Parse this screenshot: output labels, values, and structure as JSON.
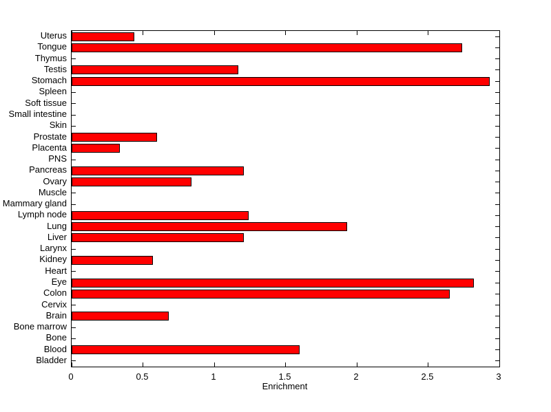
{
  "chart_data": {
    "type": "bar",
    "orientation": "horizontal",
    "title": "",
    "xlabel": "Enrichment",
    "ylabel": "",
    "xlim": [
      0,
      3
    ],
    "xticks": [
      0,
      0.5,
      1,
      1.5,
      2,
      2.5,
      3
    ],
    "xtick_labels": [
      "0",
      "0.5",
      "1",
      "1.5",
      "2",
      "2.5",
      "3"
    ],
    "grid": false,
    "legend": null,
    "bar_color": "#ff0000",
    "bar_edge_color": "#000000",
    "axis_color": "#000000",
    "background_color": "#ffffff",
    "categories_top_to_bottom": [
      "Uterus",
      "Tongue",
      "Thymus",
      "Testis",
      "Stomach",
      "Spleen",
      "Soft tissue",
      "Small intestine",
      "Skin",
      "Prostate",
      "Placenta",
      "PNS",
      "Pancreas",
      "Ovary",
      "Muscle",
      "Mammary gland",
      "Lymph node",
      "Lung",
      "Liver",
      "Larynx",
      "Kidney",
      "Heart",
      "Eye",
      "Colon",
      "Cervix",
      "Brain",
      "Bone marrow",
      "Bone",
      "Blood",
      "Bladder"
    ],
    "values": [
      0.44,
      2.74,
      0,
      1.17,
      2.93,
      0,
      0,
      0,
      0,
      0.6,
      0.34,
      0,
      1.21,
      0.84,
      0,
      0,
      1.24,
      1.93,
      1.21,
      0,
      0.57,
      0,
      2.82,
      2.65,
      0,
      0.68,
      0,
      0,
      1.6,
      0
    ]
  }
}
